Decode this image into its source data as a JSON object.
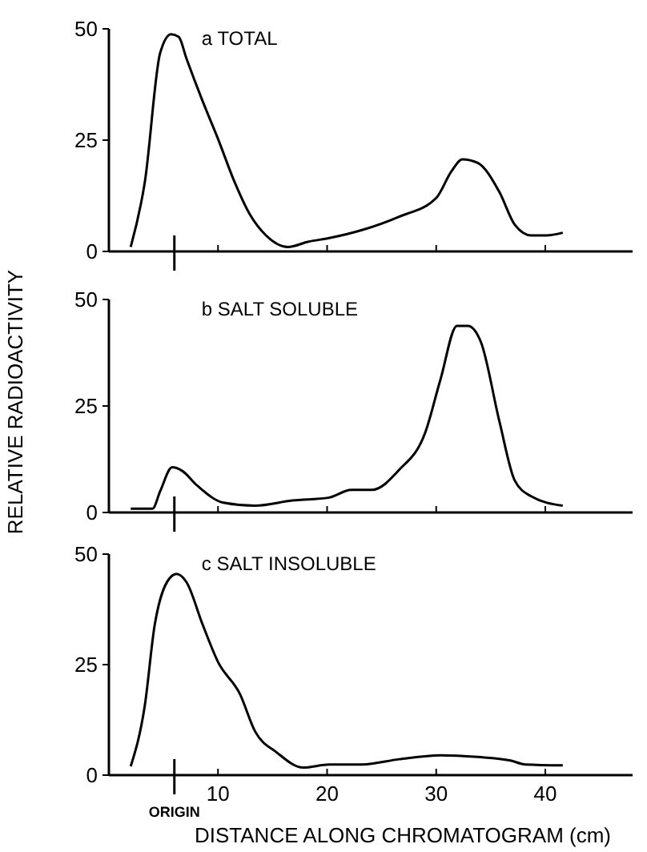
{
  "chart_data": [
    {
      "type": "line",
      "title": "a TOTAL",
      "xlim": [
        0,
        48
      ],
      "xticks": [
        {
          "value": 10,
          "label": null
        },
        {
          "value": 20,
          "label": null
        },
        {
          "value": 30,
          "label": null
        },
        {
          "value": 40,
          "label": null
        }
      ],
      "ylim": [
        0,
        50
      ],
      "yticks": [
        0,
        25,
        50
      ],
      "tick_labels": "y",
      "series": [
        {
          "color": "#000000",
          "x": [
            2.0,
            3.3,
            4.7,
            5.7,
            6.4,
            7.1,
            8.6,
            10.0,
            11.5,
            12.9,
            14.4,
            16.4,
            18.3,
            20.2,
            23.2,
            26.6,
            30.0,
            31.4,
            32.4,
            33.8,
            35.8,
            37.2,
            38.7,
            40.1,
            41.6
          ],
          "values": [
            1,
            15.7,
            44.6,
            48.8,
            48.2,
            43.4,
            33.7,
            25.3,
            15.7,
            8.4,
            3.6,
            1,
            2.2,
            3,
            4.8,
            7.8,
            12,
            18,
            20.7,
            19.9,
            13.3,
            6,
            3.6,
            3.6,
            4.2
          ]
        }
      ]
    },
    {
      "type": "line",
      "title": "b SALT SOLUBLE",
      "ylabel": "RELATIVE RADIOACTIVITY",
      "xlim": [
        0,
        48
      ],
      "xticks": [
        {
          "value": 10,
          "label": null
        },
        {
          "value": 20,
          "label": null
        },
        {
          "value": 30,
          "label": null
        },
        {
          "value": 40,
          "label": null
        }
      ],
      "ylim": [
        0,
        50
      ],
      "yticks": [
        0,
        25,
        50
      ],
      "tick_labels": "y",
      "series": [
        {
          "color": "#000000",
          "x": [
            2.0,
            4.0,
            4.7,
            5.8,
            6.7,
            8.1,
            10.5,
            13.4,
            16.8,
            20.2,
            22.2,
            24.1,
            26.6,
            29.0,
            30.4,
            31.9,
            32.9,
            34.1,
            35.8,
            37.2,
            38.7,
            41.6
          ],
          "values": [
            0.9,
            0.9,
            5,
            10.6,
            9.8,
            6.3,
            2.3,
            1.6,
            2.8,
            3.5,
            5.3,
            5.3,
            10,
            18.8,
            31.3,
            43.8,
            43.8,
            40,
            21.3,
            7.5,
            3.8,
            1.6
          ]
        }
      ]
    },
    {
      "type": "line",
      "title": "c SALT INSOLUBLE",
      "xlabel": "DISTANCE ALONG CHROMATOGRAM (cm)",
      "xlim": [
        0,
        48
      ],
      "xticks": [
        10,
        20,
        30,
        40
      ],
      "ylim": [
        0,
        50
      ],
      "yticks": [
        0,
        25,
        50
      ],
      "ref_lines": [
        {
          "axis": "x",
          "value": 6,
          "label": "ORIGIN"
        }
      ],
      "series": [
        {
          "color": "#000000",
          "x": [
            2.0,
            3.3,
            4.2,
            5.7,
            6.2,
            7.1,
            8.6,
            10.0,
            12.0,
            13.4,
            15.4,
            17.8,
            20.2,
            23.2,
            26.6,
            30.4,
            33.8,
            36.8,
            38.2,
            41.6
          ],
          "values": [
            2,
            15.9,
            34,
            44.9,
            45.5,
            43.7,
            34,
            25.6,
            18.4,
            9.9,
            5.1,
            1.7,
            2.4,
            2.4,
            3.6,
            4.5,
            4.1,
            3.3,
            2.4,
            2.2
          ]
        }
      ]
    }
  ]
}
